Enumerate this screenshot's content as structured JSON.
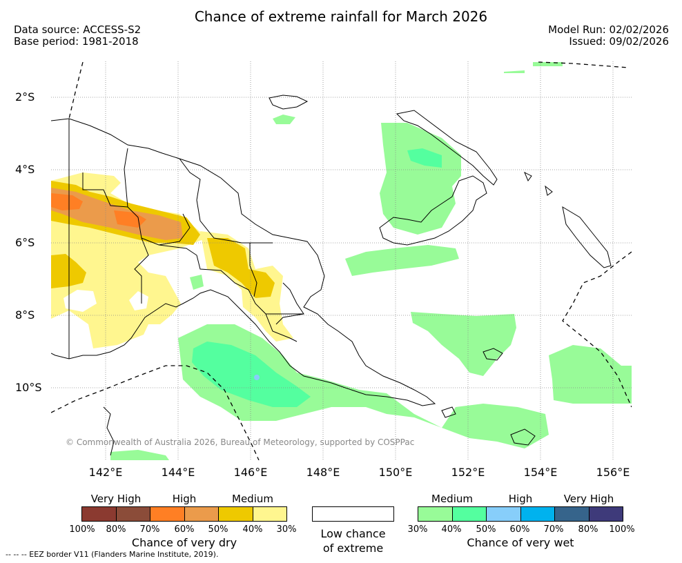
{
  "header": {
    "title": "Chance of extreme rainfall for March 2026",
    "data_source": "Data source: ACCESS-S2",
    "base_period": "Base period: 1981-2018",
    "model_run": "Model Run: 02/02/2026",
    "issued": "Issued: 09/02/2026"
  },
  "map": {
    "lat_labels": [
      "2°S",
      "4°S",
      "6°S",
      "8°S",
      "10°S"
    ],
    "lon_labels": [
      "142°E",
      "144°E",
      "146°E",
      "148°E",
      "150°E",
      "152°E",
      "154°E",
      "156°E"
    ],
    "copyright": "© Commonwealth of Australia 2026, Bureau of Meteorology, supported by COSPPac",
    "colors": {
      "very_dry_30": "#fff68f",
      "very_dry_40": "#eec900",
      "very_dry_50": "#eb9b4b",
      "very_dry_60": "#ff7f24",
      "very_wet_30": "#98fb98",
      "very_wet_40": "#54ff9f"
    }
  },
  "legend": {
    "dry": {
      "categories": [
        "Very High",
        "High",
        "Medium"
      ],
      "ticks": [
        "100%",
        "80%",
        "70%",
        "60%",
        "50%",
        "40%",
        "30%"
      ],
      "colors": [
        "#8b3a30",
        "#8b4c39",
        "#ff7f24",
        "#eb9b4b",
        "#eec900",
        "#fff68f"
      ],
      "caption": "Chance of very dry"
    },
    "low": {
      "caption_line1": "Low chance",
      "caption_line2": "of extreme"
    },
    "wet": {
      "categories": [
        "Medium",
        "High",
        "Very High"
      ],
      "ticks": [
        "30%",
        "40%",
        "50%",
        "60%",
        "70%",
        "80%",
        "100%"
      ],
      "colors": [
        "#98fb98",
        "#54ff9f",
        "#87cefa",
        "#00b2ee",
        "#36648b",
        "#3e3a7a"
      ],
      "caption": "Chance of very wet"
    }
  },
  "footer": {
    "eez_note": "--  --  -- EEZ border V11 (Flanders Marine Institute, 2019)."
  }
}
